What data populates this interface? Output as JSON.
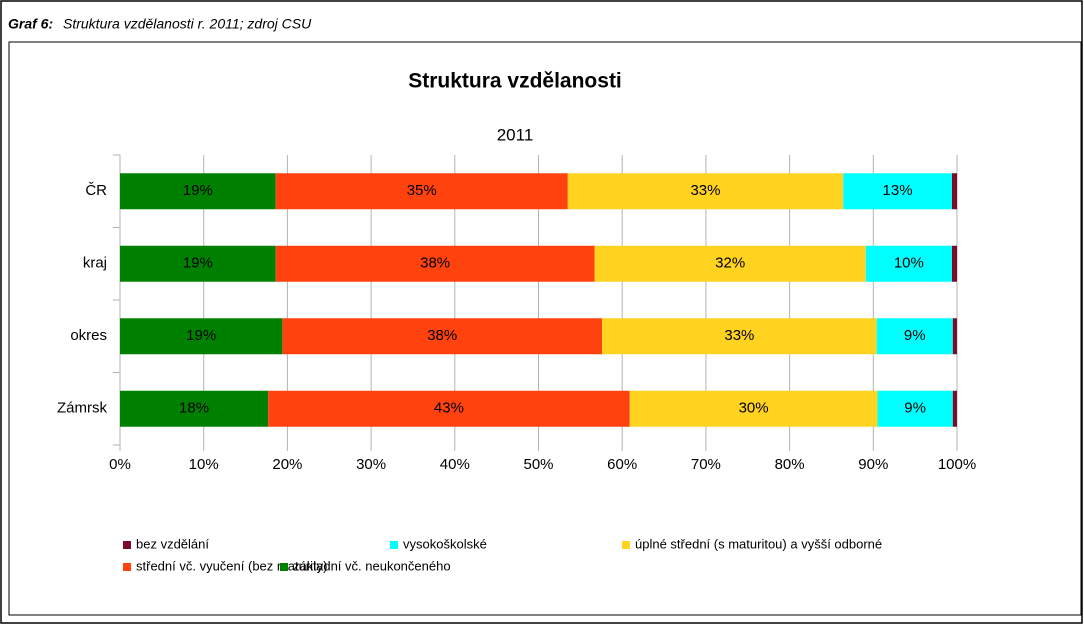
{
  "chart_data": {
    "type": "stacked_barh",
    "caption_label": "Graf 6:",
    "caption": "Struktura vzdělanosti r. 2011; zdroj CSU",
    "title": "Struktura vzdělanosti",
    "subtitle": "2011",
    "categories": [
      "ČR",
      "kraj",
      "okres",
      "Zámrsk"
    ],
    "series": [
      {
        "name": "bez vzdělání",
        "color": "#7b0c2a",
        "values": [
          0.6,
          0.6,
          0.5,
          0.5
        ]
      },
      {
        "name": "vysokoškolské",
        "color": "#00ffff",
        "values": [
          13.0,
          10.3,
          9.1,
          9.0
        ],
        "value_labels": [
          "13%",
          "10%",
          "9%",
          "9%"
        ]
      },
      {
        "name": "úplné střední (s maturitou) a vyšší odborné",
        "color": "#ffd320",
        "values": [
          32.9,
          32.4,
          32.8,
          29.6
        ],
        "value_labels": [
          "33%",
          "32%",
          "33%",
          "30%"
        ]
      },
      {
        "name": "střední vč. vyučení (bez maturity)",
        "color": "#ff420e",
        "values": [
          34.9,
          38.1,
          38.2,
          43.2
        ],
        "value_labels": [
          "35%",
          "38%",
          "38%",
          "43%"
        ]
      },
      {
        "name": "základní vč.  neukončeného",
        "color": "#008000",
        "values": [
          18.6,
          18.6,
          19.4,
          17.7
        ],
        "value_labels": [
          "19%",
          "19%",
          "19%",
          "18%"
        ]
      }
    ],
    "xlim": [
      0,
      100
    ],
    "xticks": [
      {
        "value": 0,
        "label": "0%"
      },
      {
        "value": 10,
        "label": "10%"
      },
      {
        "value": 20,
        "label": "20%"
      },
      {
        "value": 30,
        "label": "30%"
      },
      {
        "value": 40,
        "label": "40%"
      },
      {
        "value": 50,
        "label": "50%"
      },
      {
        "value": 60,
        "label": "60%"
      },
      {
        "value": 70,
        "label": "70%"
      },
      {
        "value": 80,
        "label": "80%"
      },
      {
        "value": 90,
        "label": "90%"
      },
      {
        "value": 100,
        "label": "100%"
      }
    ],
    "grid": true
  }
}
